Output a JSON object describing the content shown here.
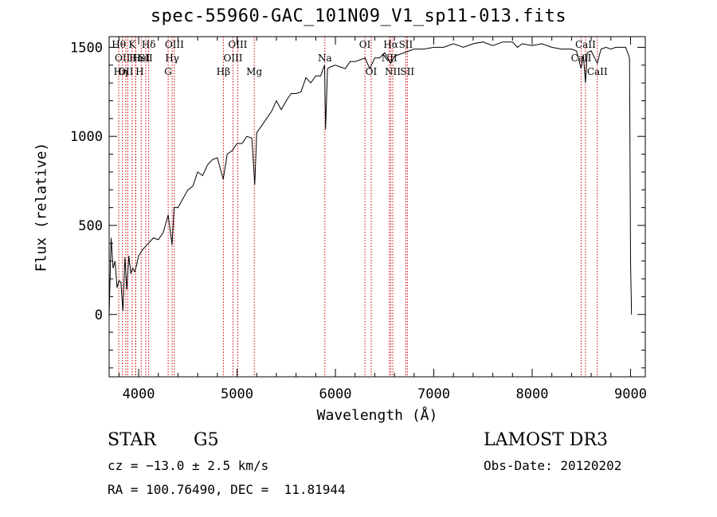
{
  "header": {
    "title": "spec-55960-GAC_101N09_V1_sp11-013.fits"
  },
  "info": {
    "class_label": "STAR",
    "subclass_label": "G5",
    "survey_label": "LAMOST DR3",
    "cz_text": "cz = −13.0 ± 2.5 km/s",
    "obs_date_text": "Obs-Date: 20120202",
    "coords_text": "RA = 100.76490, DEC =  11.81944"
  },
  "chart_data": {
    "type": "line",
    "title": "spec-55960-GAC_101N09_V1_sp11-013.fits",
    "xlabel": "Wavelength (Å)",
    "ylabel": "Flux (relative)",
    "xlim": [
      3700,
      9150
    ],
    "ylim": [
      -350,
      1560
    ],
    "xticks": [
      4000,
      5000,
      6000,
      7000,
      8000,
      9000
    ],
    "yticks": [
      0,
      500,
      1000,
      1500
    ],
    "line_color": "#000000",
    "marker_color": "#cc0000",
    "series": [
      {
        "name": "spectrum",
        "x": [
          3700,
          3720,
          3740,
          3760,
          3780,
          3800,
          3820,
          3840,
          3860,
          3880,
          3900,
          3920,
          3940,
          3960,
          3980,
          4000,
          4050,
          4100,
          4150,
          4200,
          4250,
          4300,
          4340,
          4360,
          4400,
          4450,
          4500,
          4550,
          4600,
          4650,
          4700,
          4750,
          4800,
          4860,
          4900,
          4950,
          5000,
          5050,
          5100,
          5150,
          5180,
          5200,
          5250,
          5300,
          5350,
          5400,
          5450,
          5500,
          5550,
          5600,
          5650,
          5700,
          5750,
          5800,
          5850,
          5890,
          5900,
          5920,
          5950,
          6000,
          6050,
          6100,
          6150,
          6200,
          6250,
          6300,
          6350,
          6400,
          6450,
          6500,
          6563,
          6600,
          6650,
          6700,
          6750,
          6800,
          6900,
          7000,
          7100,
          7200,
          7300,
          7400,
          7500,
          7600,
          7700,
          7800,
          7850,
          7900,
          8000,
          8100,
          8200,
          8300,
          8400,
          8450,
          8498,
          8520,
          8542,
          8560,
          8600,
          8662,
          8700,
          8750,
          8800,
          8850,
          8900,
          8950,
          8970,
          8990,
          9000,
          9010
        ],
        "y": [
          0,
          430,
          260,
          300,
          150,
          190,
          180,
          20,
          320,
          140,
          330,
          230,
          260,
          240,
          280,
          330,
          370,
          400,
          430,
          420,
          460,
          560,
          390,
          600,
          600,
          650,
          700,
          720,
          800,
          780,
          840,
          870,
          880,
          760,
          900,
          920,
          960,
          960,
          1000,
          990,
          730,
          1020,
          1060,
          1100,
          1140,
          1200,
          1150,
          1200,
          1240,
          1240,
          1250,
          1330,
          1300,
          1340,
          1340,
          1400,
          1040,
          1380,
          1390,
          1400,
          1390,
          1380,
          1420,
          1420,
          1430,
          1440,
          1380,
          1440,
          1440,
          1470,
          1410,
          1450,
          1460,
          1470,
          1480,
          1490,
          1490,
          1500,
          1500,
          1520,
          1500,
          1520,
          1530,
          1510,
          1530,
          1530,
          1500,
          1520,
          1510,
          1520,
          1500,
          1490,
          1490,
          1480,
          1380,
          1460,
          1300,
          1470,
          1480,
          1410,
          1490,
          1500,
          1490,
          1500,
          1500,
          1500,
          1470,
          1440,
          300,
          0
        ]
      }
    ],
    "lines": [
      {
        "wave": 3798,
        "label": "Hθ",
        "row": 0,
        "align": "center"
      },
      {
        "wave": 3835,
        "label": "OII",
        "row": 1,
        "align": "center"
      },
      {
        "wave": 3869,
        "label": "OII",
        "row": 2,
        "align": "center"
      },
      {
        "wave": 3889,
        "label": "Hη",
        "row": 2,
        "align": "right"
      },
      {
        "wave": 3934,
        "label": "K",
        "row": 0,
        "align": "center"
      },
      {
        "wave": 3968,
        "label": "H",
        "row": 2,
        "align": "left"
      },
      {
        "wave": 3970,
        "label": "Hε",
        "row": 1,
        "align": "center"
      },
      {
        "wave": 4026,
        "label": "HeI",
        "row": 1,
        "align": "center"
      },
      {
        "wave": 4072,
        "label": "SII",
        "row": 1,
        "align": "center"
      },
      {
        "wave": 4102,
        "label": "Hδ",
        "row": 0,
        "align": "center"
      },
      {
        "wave": 4300,
        "label": "G",
        "row": 2,
        "align": "center"
      },
      {
        "wave": 4340,
        "label": "Hγ",
        "row": 1,
        "align": "center"
      },
      {
        "wave": 4363,
        "label": "OIII",
        "row": 0,
        "align": "center"
      },
      {
        "wave": 4861,
        "label": "Hβ",
        "row": 2,
        "align": "center"
      },
      {
        "wave": 4959,
        "label": "OIII",
        "row": 1,
        "align": "center"
      },
      {
        "wave": 5007,
        "label": "OIII",
        "row": 0,
        "align": "center"
      },
      {
        "wave": 5175,
        "label": "Mg",
        "row": 2,
        "align": "center"
      },
      {
        "wave": 5893,
        "label": "Na",
        "row": 1,
        "align": "center"
      },
      {
        "wave": 6300,
        "label": "OI",
        "row": 0,
        "align": "center"
      },
      {
        "wave": 6364,
        "label": "OI",
        "row": 2,
        "align": "center"
      },
      {
        "wave": 6548,
        "label": "NII",
        "row": 1,
        "align": "center"
      },
      {
        "wave": 6563,
        "label": "Hα",
        "row": 0,
        "align": "center"
      },
      {
        "wave": 6583,
        "label": "NII",
        "row": 2,
        "align": "center"
      },
      {
        "wave": 6716,
        "label": "SII",
        "row": 0,
        "align": "center"
      },
      {
        "wave": 6731,
        "label": "SII",
        "row": 2,
        "align": "center"
      },
      {
        "wave": 8498,
        "label": "CaII",
        "row": 1,
        "align": "center"
      },
      {
        "wave": 8542,
        "label": "CaII",
        "row": 0,
        "align": "center"
      },
      {
        "wave": 8662,
        "label": "CaII",
        "row": 2,
        "align": "center"
      }
    ]
  }
}
